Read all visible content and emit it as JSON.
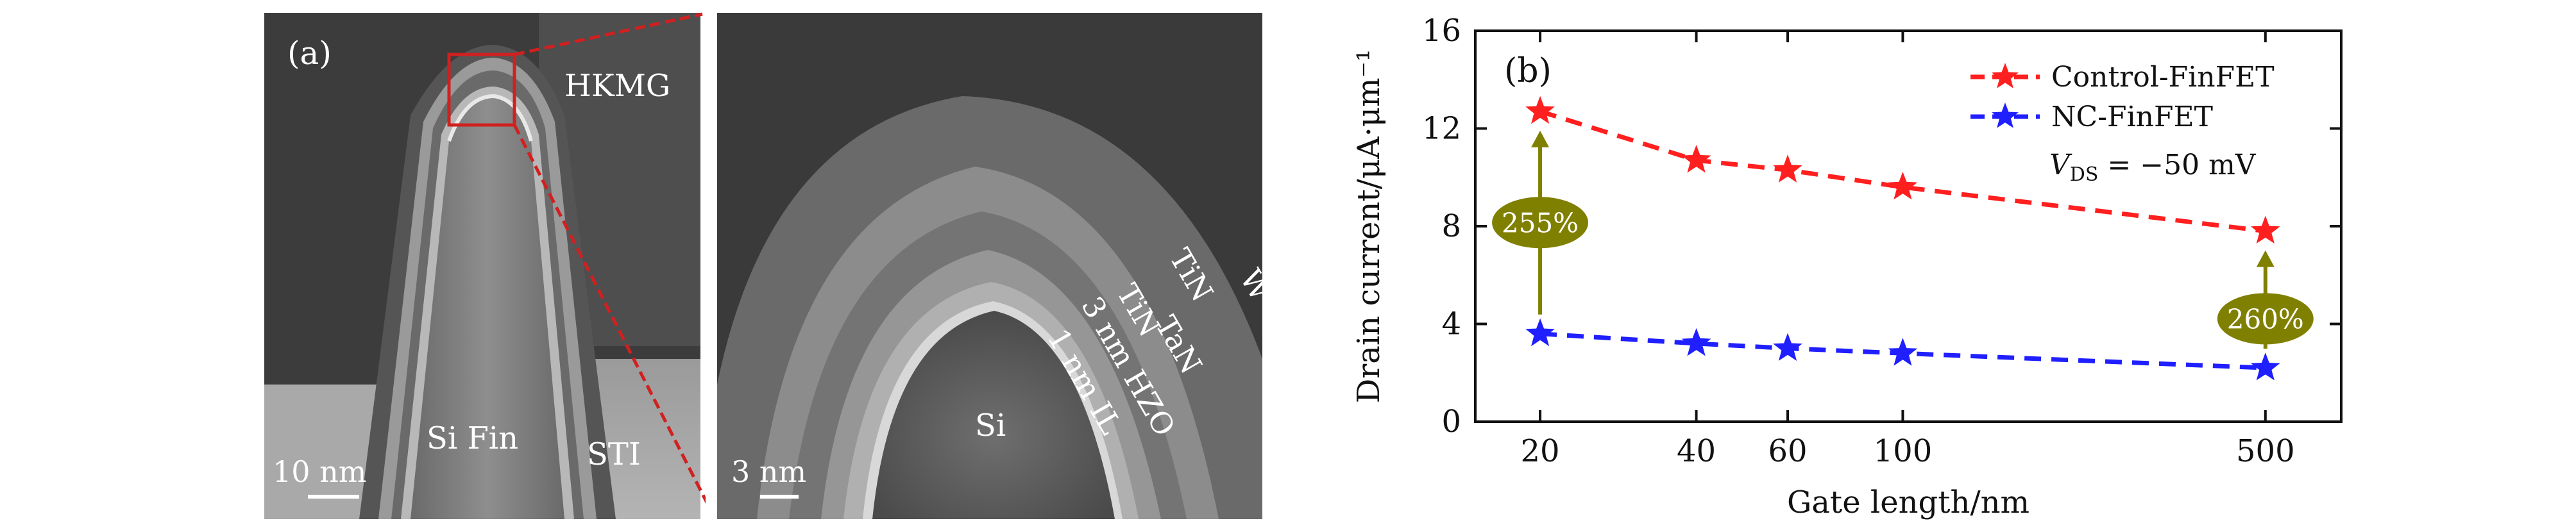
{
  "panel_a": {
    "label": "(a)",
    "left_labels": {
      "hkmg": "HKMG",
      "fin": "Si Fin",
      "sti": "STI",
      "scale": "10 nm"
    },
    "right_labels": {
      "w": "W",
      "tin_outer": "TiN",
      "tan": "TaN",
      "tin_inner": "TiN",
      "hzo": "3 nm HZO",
      "il": "1 nm IL",
      "si": "Si",
      "scale": "3 nm"
    }
  },
  "chart_data": {
    "type": "line",
    "panel_label": "(b)",
    "xlabel": "Gate length/nm",
    "ylabel": "Drain current/μA·μm⁻¹",
    "x": [
      20,
      40,
      60,
      100,
      500
    ],
    "x_tick_labels": [
      "20",
      "40",
      "60",
      "100",
      "500"
    ],
    "xscale": "log",
    "ylim": [
      0,
      16
    ],
    "y_ticks": [
      0,
      4,
      8,
      12,
      16
    ],
    "y_tick_labels": [
      "0",
      "4",
      "8",
      "12",
      "16"
    ],
    "grid": false,
    "legend_position": "top-right",
    "series": [
      {
        "name": "Control-FinFET",
        "values": [
          12.7,
          10.7,
          10.3,
          9.6,
          7.8
        ],
        "color": "#ff1f1f",
        "marker": "star",
        "line": "dashed"
      },
      {
        "name": "NC-FinFET",
        "values": [
          3.6,
          3.2,
          3.0,
          2.8,
          2.2
        ],
        "color": "#1f1fff",
        "marker": "star",
        "line": "dashed"
      }
    ],
    "annotations": [
      {
        "text": "255%",
        "x": 20,
        "from": 3.6,
        "to": 12.7
      },
      {
        "text": "260%",
        "x": 500,
        "from": 2.2,
        "to": 7.8
      },
      {
        "text": "V_DS = −50 mV",
        "main": "V",
        "sub": "DS",
        "rest": " = −50 mV"
      }
    ],
    "annotation_color": "#808000"
  }
}
